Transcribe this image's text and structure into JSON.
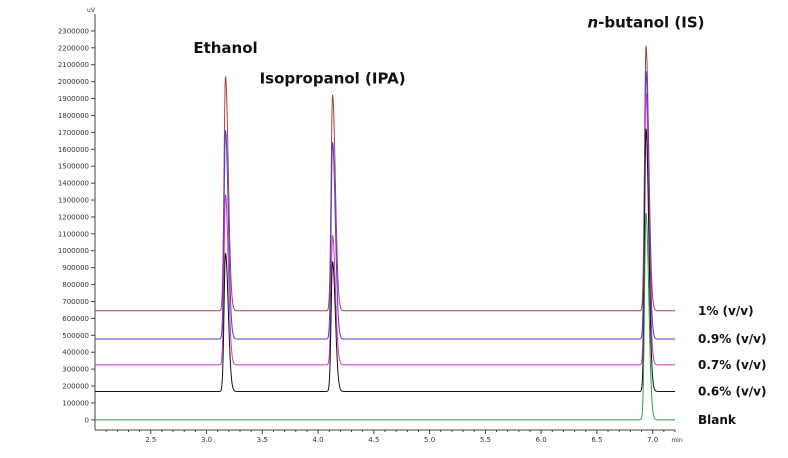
{
  "chart_data": {
    "type": "line",
    "y_unit_label": "uV",
    "x_unit_label": "min",
    "xlim": [
      2.0,
      7.2
    ],
    "ylim": [
      -60000,
      2400000
    ],
    "x_ticks": [
      {
        "value": 2.5,
        "label": "2.5"
      },
      {
        "value": 3.0,
        "label": "3.0"
      },
      {
        "value": 3.5,
        "label": "3.5"
      },
      {
        "value": 4.0,
        "label": "4.0"
      },
      {
        "value": 4.5,
        "label": "4.5"
      },
      {
        "value": 5.0,
        "label": "5.0"
      },
      {
        "value": 5.5,
        "label": "5.5"
      },
      {
        "value": 6.0,
        "label": "6.0"
      },
      {
        "value": 6.5,
        "label": "6.5"
      },
      {
        "value": 7.0,
        "label": "7.0"
      }
    ],
    "y_ticks": [
      {
        "value": 0,
        "label": "0"
      },
      {
        "value": 100000,
        "label": "100000"
      },
      {
        "value": 200000,
        "label": "200000"
      },
      {
        "value": 300000,
        "label": "300000"
      },
      {
        "value": 400000,
        "label": "400000"
      },
      {
        "value": 500000,
        "label": "500000"
      },
      {
        "value": 600000,
        "label": "600000"
      },
      {
        "value": 700000,
        "label": "700000"
      },
      {
        "value": 800000,
        "label": "800000"
      },
      {
        "value": 900000,
        "label": "900000"
      },
      {
        "value": 1000000,
        "label": "1000000"
      },
      {
        "value": 1100000,
        "label": "1100000"
      },
      {
        "value": 1200000,
        "label": "1200000"
      },
      {
        "value": 1300000,
        "label": "1300000"
      },
      {
        "value": 1400000,
        "label": "1400000"
      },
      {
        "value": 1500000,
        "label": "1500000"
      },
      {
        "value": 1600000,
        "label": "1600000"
      },
      {
        "value": 1700000,
        "label": "1700000"
      },
      {
        "value": 1800000,
        "label": "1800000"
      },
      {
        "value": 1900000,
        "label": "1900000"
      },
      {
        "value": 2000000,
        "label": "2000000"
      },
      {
        "value": 2100000,
        "label": "2100000"
      },
      {
        "value": 2200000,
        "label": "2200000"
      },
      {
        "value": 2300000,
        "label": "2300000"
      }
    ],
    "series": [
      {
        "name": "1% (v/v)",
        "color": "#a0454a",
        "baseline": 645000,
        "peaks": [
          {
            "rt": 3.17,
            "apex": 2030000
          },
          {
            "rt": 4.13,
            "apex": 1920000
          },
          {
            "rt": 6.94,
            "apex": 2210000
          }
        ]
      },
      {
        "name": "0.9% (v/v)",
        "color": "#4a3fd0",
        "baseline": 478000,
        "peaks": [
          {
            "rt": 3.17,
            "apex": 1710000
          },
          {
            "rt": 4.13,
            "apex": 1640000
          },
          {
            "rt": 6.94,
            "apex": 2060000
          }
        ]
      },
      {
        "name": "0.7% (v/v)",
        "color": "#cc33cc",
        "baseline": 325000,
        "peaks": [
          {
            "rt": 3.17,
            "apex": 1330000
          },
          {
            "rt": 4.13,
            "apex": 1090000
          },
          {
            "rt": 6.94,
            "apex": 1930000
          }
        ]
      },
      {
        "name": "0.6% (v/v)",
        "color": "#111111",
        "baseline": 168000,
        "peaks": [
          {
            "rt": 3.17,
            "apex": 985000
          },
          {
            "rt": 4.13,
            "apex": 935000
          },
          {
            "rt": 6.94,
            "apex": 1720000
          }
        ]
      },
      {
        "name": "Blank",
        "color": "#2e9e3e",
        "baseline": 0,
        "peaks": [
          {
            "rt": 6.94,
            "apex": 1220000
          }
        ]
      }
    ],
    "annotations": [
      {
        "text_parts": [
          "Ethanol"
        ],
        "x": 3.17,
        "y": 2170000
      },
      {
        "text_parts": [
          "Isopropanol (IPA)"
        ],
        "x": 4.13,
        "y": 1990000
      },
      {
        "text_parts": [
          "n",
          "-butanol (IS)"
        ],
        "italic_first": true,
        "x": 6.94,
        "y": 2320000
      }
    ],
    "grid": false,
    "legend": "inline-right"
  }
}
